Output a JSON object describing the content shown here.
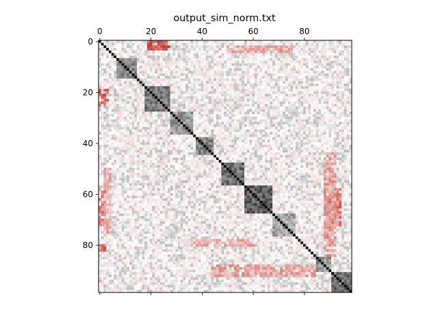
{
  "chart_data": {
    "type": "heatmap",
    "title": "output_sim_norm.txt",
    "size": 99,
    "x_ticks": [
      0,
      20,
      40,
      60,
      80
    ],
    "y_ticks": [
      0,
      20,
      40,
      60,
      80
    ],
    "x_tick_labels": [
      "0",
      "20",
      "40",
      "60",
      "80"
    ],
    "y_tick_labels": [
      "0",
      "20",
      "40",
      "60",
      "80"
    ],
    "x_ticks_position": "top",
    "colormap": "RdGy (red = dissimilar, white = neutral, gray/black = similar)",
    "colors": {
      "high": "#000000",
      "mid": "#ffffff",
      "low": "#c0261f"
    },
    "diagonal_value": 1.0,
    "value_range": [
      -1,
      1
    ],
    "blocks": [
      {
        "range": [
          7,
          14
        ],
        "value": 0.5
      },
      {
        "range": [
          18,
          27
        ],
        "value": 0.55
      },
      {
        "range": [
          28,
          36
        ],
        "value": 0.45
      },
      {
        "range": [
          38,
          44
        ],
        "value": 0.5
      },
      {
        "range": [
          48,
          56
        ],
        "value": 0.6
      },
      {
        "range": [
          57,
          67
        ],
        "value": 0.65
      },
      {
        "range": [
          68,
          76
        ],
        "value": 0.4
      },
      {
        "range": [
          85,
          90
        ],
        "value": 0.45
      },
      {
        "range": [
          91,
          98
        ],
        "value": 0.6
      }
    ],
    "anti_bands": [
      {
        "rows": [
          0,
          3
        ],
        "cols": [
          19,
          27
        ],
        "value": -0.75
      },
      {
        "rows": [
          19,
          25
        ],
        "cols": [
          0,
          3
        ],
        "value": -0.75
      },
      {
        "rows": [
          58,
          72
        ],
        "cols": [
          0,
          2
        ],
        "value": -0.6
      },
      {
        "rows": [
          80,
          84
        ],
        "cols": [
          0,
          2
        ],
        "value": -0.7
      },
      {
        "rows": [
          58,
          72
        ],
        "cols": [
          90,
          94
        ],
        "value": -0.6
      },
      {
        "rows": [
          88,
          92
        ],
        "cols": [
          44,
          84
        ],
        "value": -0.45
      },
      {
        "rows": [
          44,
          84
        ],
        "cols": [
          88,
          92
        ],
        "value": -0.45
      },
      {
        "rows": [
          2,
          4
        ],
        "cols": [
          50,
          75
        ],
        "value": -0.4
      },
      {
        "rows": [
          50,
          75
        ],
        "cols": [
          2,
          4
        ],
        "value": -0.4
      },
      {
        "rows": [
          78,
          80
        ],
        "cols": [
          36,
          60
        ],
        "value": -0.4
      }
    ]
  }
}
